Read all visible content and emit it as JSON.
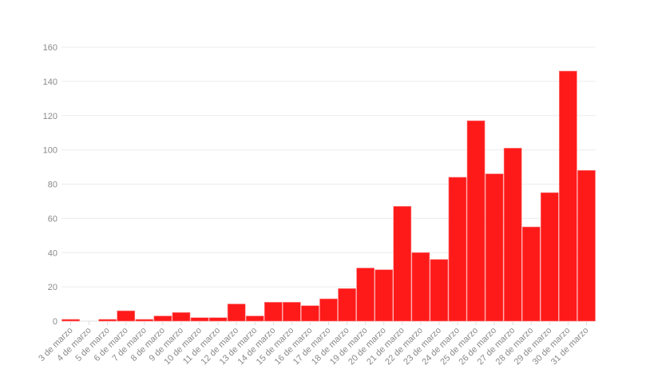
{
  "chart_data": {
    "type": "bar",
    "title": "",
    "xlabel": "",
    "ylabel": "",
    "ylim": [
      0,
      160
    ],
    "yticks": [
      0,
      20,
      40,
      60,
      80,
      100,
      120,
      140,
      160
    ],
    "grid": true,
    "bar_color": "#ff1a1a",
    "categories": [
      "3 de marzo",
      "4 de marzo",
      "5 de marzo",
      "6 de marzo",
      "7 de marzo",
      "8 de marzo",
      "9 de marzo",
      "10 de marzo",
      "11 de marzo",
      "12 de marzo",
      "13 de marzo",
      "14 de marzo",
      "15 de marzo",
      "16 de marzo",
      "17 de marzo",
      "18 de marzo",
      "19 de marzo",
      "20 de marzo",
      "21 de marzo",
      "22 de marzo",
      "23 de marzo",
      "24 de marzo",
      "25 de marzo",
      "26 de marzo",
      "27 de marzo",
      "28 de marzo",
      "29 de marzo",
      "30 de marzo",
      "31 de marzo"
    ],
    "values": [
      1,
      0,
      1,
      6,
      1,
      3,
      5,
      2,
      2,
      10,
      3,
      11,
      11,
      9,
      13,
      19,
      31,
      30,
      67,
      40,
      36,
      84,
      117,
      86,
      101,
      55,
      75,
      146,
      88
    ]
  }
}
